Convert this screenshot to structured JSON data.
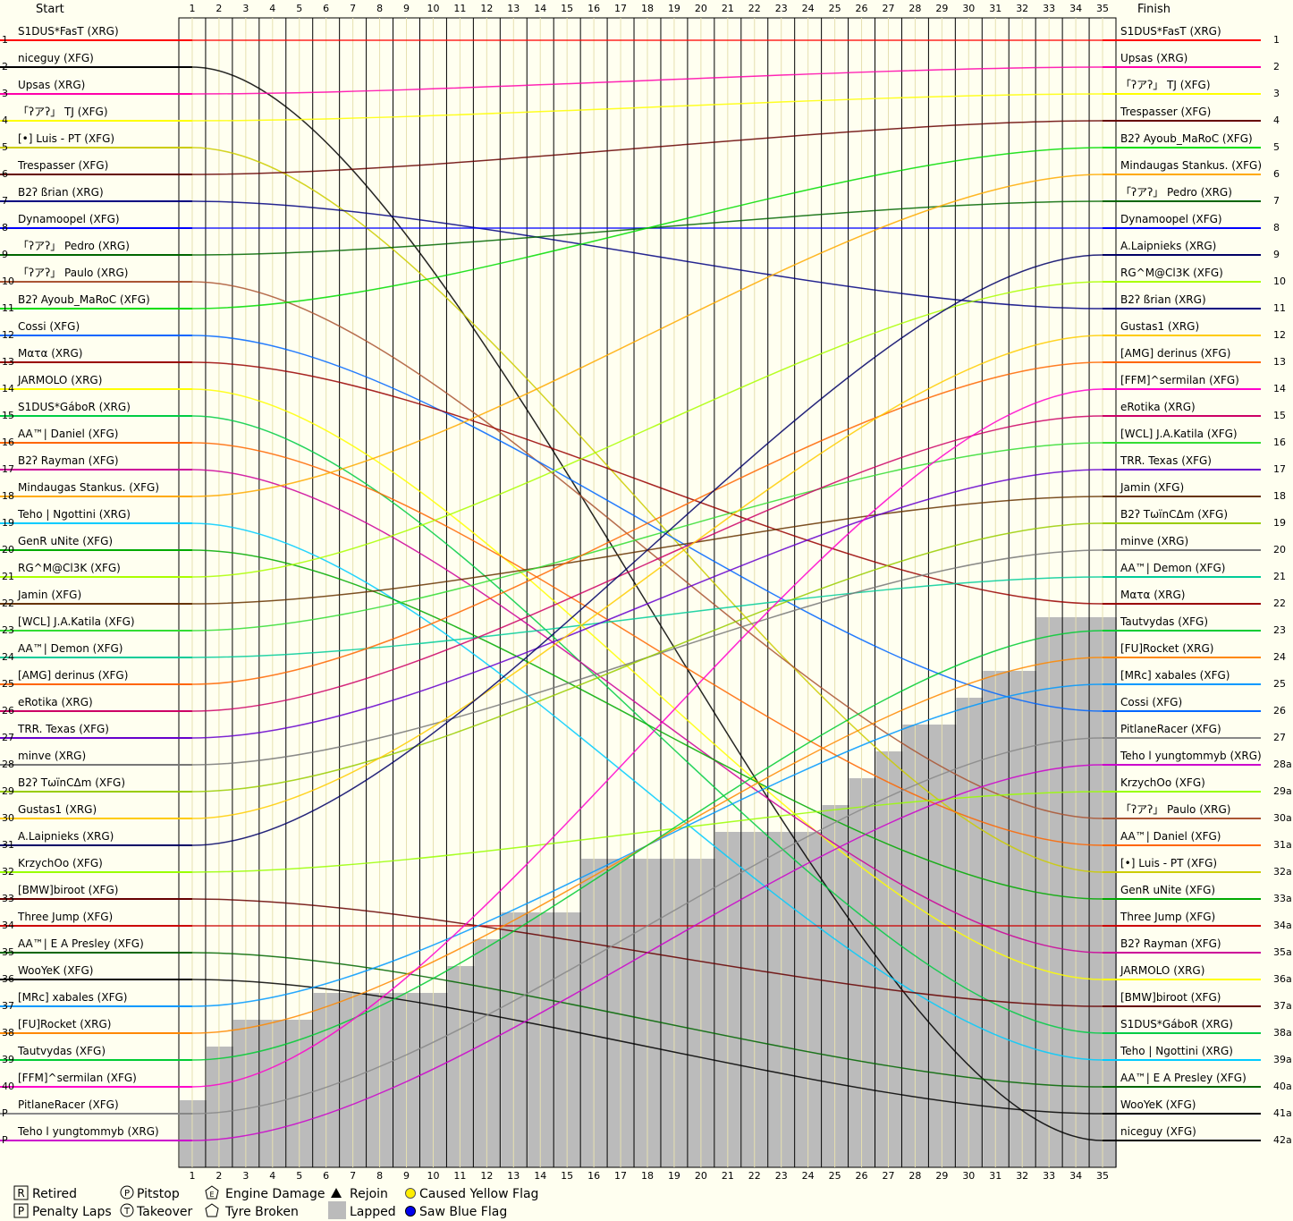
{
  "chart_data": {
    "type": "line",
    "title": "",
    "start_header": "Start",
    "finish_header": "Finish",
    "laps": 35,
    "lap_labels": [
      "1",
      "2",
      "3",
      "4",
      "5",
      "6",
      "7",
      "8",
      "9",
      "10",
      "11",
      "12",
      "13",
      "14",
      "15",
      "16",
      "17",
      "18",
      "19",
      "20",
      "21",
      "22",
      "23",
      "24",
      "25",
      "26",
      "27",
      "28",
      "29",
      "30",
      "31",
      "32",
      "33",
      "34",
      "35"
    ],
    "start_positions": [
      "1",
      "2",
      "3",
      "4",
      "5",
      "6",
      "7",
      "8",
      "9",
      "10",
      "11",
      "12",
      "13",
      "14",
      "15",
      "16",
      "17",
      "18",
      "19",
      "20",
      "21",
      "22",
      "23",
      "24",
      "25",
      "26",
      "27",
      "28",
      "29",
      "30",
      "31",
      "32",
      "33",
      "34",
      "35",
      "36",
      "37",
      "38",
      "39",
      "40",
      "P",
      "P"
    ],
    "finish_positions": [
      "1",
      "2",
      "3",
      "4",
      "5",
      "6",
      "7",
      "8",
      "9",
      "10",
      "11",
      "12",
      "13",
      "14",
      "15",
      "16",
      "17",
      "18",
      "19",
      "20",
      "21",
      "22",
      "23",
      "24",
      "25",
      "26",
      "27",
      "28a",
      "29a",
      "30a",
      "31a",
      "32a",
      "33a",
      "34a",
      "35a",
      "36a",
      "37a",
      "38a",
      "39a",
      "40a",
      "41a",
      "42a"
    ],
    "start_grid": [
      {
        "name": "S1DUS*FasT (XRG)",
        "color": "#ff0000"
      },
      {
        "name": "niceguy (XFG)",
        "color": "#000000"
      },
      {
        "name": "Upsas (XRG)",
        "color": "#ff00aa"
      },
      {
        "name": "「ʔアʔ」 TJ (XFG)",
        "color": "#ffff00"
      },
      {
        "name": "[•] Luis - PT (XFG)",
        "color": "#cccc00"
      },
      {
        "name": "Trespasser (XFG)",
        "color": "#660000"
      },
      {
        "name": "B2ʔ ßrian (XRG)",
        "color": "#000080"
      },
      {
        "name": "Dynamoopel (XFG)",
        "color": "#0000ff"
      },
      {
        "name": "「ʔアʔ」 Pedro (XRG)",
        "color": "#006600"
      },
      {
        "name": "「ʔアʔ」 Paulo (XRG)",
        "color": "#aa5533"
      },
      {
        "name": "B2ʔ Ayoub_MaRoC (XFG)",
        "color": "#00dd00"
      },
      {
        "name": "Cossi (XFG)",
        "color": "#0066ff"
      },
      {
        "name": "Mατα (XRG)",
        "color": "#990000"
      },
      {
        "name": "JARMOLO (XRG)",
        "color": "#ffff00"
      },
      {
        "name": "S1DUS*GáboR (XRG)",
        "color": "#00cc44"
      },
      {
        "name": "AA™| Daniel (XFG)",
        "color": "#ff6600"
      },
      {
        "name": "B2ʔ Rayman (XFG)",
        "color": "#cc0099"
      },
      {
        "name": "Mindaugas Stankus. (XFG)",
        "color": "#ffaa00"
      },
      {
        "name": "Teho | Ngottini (XRG)",
        "color": "#00ccff"
      },
      {
        "name": "GenR uNite (XFG)",
        "color": "#00aa00"
      },
      {
        "name": "RG^M@Cl3K (XFG)",
        "color": "#aaff00"
      },
      {
        "name": "Jamin (XFG)",
        "color": "#663300"
      },
      {
        "name": "[WCL] J.A.Katila (XFG)",
        "color": "#33dd33"
      },
      {
        "name": "AA™| Demon (XFG)",
        "color": "#00cc99"
      },
      {
        "name": "[AMG] derinus (XFG)",
        "color": "#ff6600"
      },
      {
        "name": "eRotika (XRG)",
        "color": "#cc0066"
      },
      {
        "name": "TRR. Texas (XFG)",
        "color": "#6600cc"
      },
      {
        "name": "minve (XRG)",
        "color": "#777777"
      },
      {
        "name": "B2ʔ TωïnCΔm (XFG)",
        "color": "#99cc00"
      },
      {
        "name": "Gustas1 (XRG)",
        "color": "#ffcc00"
      },
      {
        "name": "A.Laipnieks (XRG)",
        "color": "#000066"
      },
      {
        "name": "KrzychOo (XFG)",
        "color": "#99ff00"
      },
      {
        "name": "[BMW]biroot (XFG)",
        "color": "#660000"
      },
      {
        "name": "Three Jump (XFG)",
        "color": "#cc0000"
      },
      {
        "name": "AA™| E A Presley (XFG)",
        "color": "#006600"
      },
      {
        "name": "WooYeK (XFG)",
        "color": "#000000"
      },
      {
        "name": "[MRc] xabales (XFG)",
        "color": "#0099ff"
      },
      {
        "name": "[FU]Rocket (XRG)",
        "color": "#ff8800"
      },
      {
        "name": "Tautvydas (XFG)",
        "color": "#00cc33"
      },
      {
        "name": "[FFM]^sermilan (XFG)",
        "color": "#ff00cc"
      },
      {
        "name": "PitlaneRacer (XFG)",
        "color": "#888888"
      },
      {
        "name": "Teho l yungtommyb (XRG)",
        "color": "#cc00cc"
      }
    ],
    "finish_order": [
      "S1DUS*FasT (XRG)",
      "Upsas (XRG)",
      "「ʔアʔ」 TJ (XFG)",
      "Trespasser (XFG)",
      "B2ʔ Ayoub_MaRoC (XFG)",
      "Mindaugas Stankus. (XFG)",
      "「ʔアʔ」 Pedro (XRG)",
      "Dynamoopel (XFG)",
      "A.Laipnieks (XRG)",
      "RG^M@Cl3K (XFG)",
      "B2ʔ ßrian (XRG)",
      "Gustas1 (XRG)",
      "[AMG] derinus (XFG)",
      "[FFM]^sermilan (XFG)",
      "eRotika (XRG)",
      "[WCL] J.A.Katila (XFG)",
      "TRR. Texas (XFG)",
      "Jamin (XFG)",
      "B2ʔ TωïnCΔm (XFG)",
      "minve (XRG)",
      "AA™| Demon (XFG)",
      "Mατα (XRG)",
      "Tautvydas (XFG)",
      "[FU]Rocket (XRG)",
      "[MRc] xabales (XFG)",
      "Cossi (XFG)",
      "PitlaneRacer (XFG)",
      "Teho l yungtommyb (XRG)",
      "KrzychOo (XFG)",
      "「ʔアʔ」 Paulo (XRG)",
      "AA™| Daniel (XFG)",
      "[•] Luis - PT (XFG)",
      "GenR uNite (XFG)",
      "Three Jump (XFG)",
      "B2ʔ Rayman (XFG)",
      "JARMOLO (XRG)",
      "[BMW]biroot (XFG)",
      "S1DUS*GáboR (XRG)",
      "Teho | Ngottini (XRG)",
      "AA™| E A Presley (XFG)",
      "WooYeK (XFG)",
      "niceguy (XFG)"
    ],
    "lapped_profile": [
      41,
      39,
      38,
      38,
      38,
      37,
      37,
      37,
      37,
      37,
      36,
      35,
      34,
      34,
      34,
      32,
      32,
      32,
      32,
      32,
      31,
      31,
      31,
      31,
      30,
      29,
      28,
      27,
      27,
      26,
      25,
      25,
      23,
      23,
      23
    ],
    "grid": "on"
  },
  "legend": {
    "retired": "Retired",
    "pitstop": "Pitstop",
    "engine_damage": "Engine Damage",
    "rejoin": "Rejoin",
    "caused_yellow": "Caused Yellow Flag",
    "penalty": "Penalty Laps",
    "takeover": "Takeover",
    "tyre": "Tyre Broken",
    "lapped": "Lapped",
    "saw_blue": "Saw Blue Flag"
  },
  "colors": {
    "background": "#fffff0",
    "lapped": "#bbbbbb",
    "yellow_flag": "#ffee00",
    "blue_flag": "#0000ee"
  }
}
